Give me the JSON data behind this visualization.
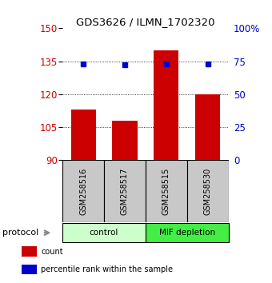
{
  "title": "GDS3626 / ILMN_1702320",
  "samples": [
    "GSM258516",
    "GSM258517",
    "GSM258515",
    "GSM258530"
  ],
  "bar_values": [
    113,
    108,
    140,
    120
  ],
  "percentile_values": [
    73,
    72,
    73,
    73
  ],
  "bar_color": "#cc0000",
  "dot_color": "#0000cc",
  "y_min": 90,
  "y_max": 150,
  "y_ticks_left": [
    90,
    105,
    120,
    135,
    150
  ],
  "y_ticks_right": [
    0,
    25,
    50,
    75,
    100
  ],
  "y_right_labels": [
    "0",
    "25",
    "50",
    "75",
    "100%"
  ],
  "groups": [
    {
      "label": "control",
      "start": 0,
      "end": 2,
      "color": "#ccffcc"
    },
    {
      "label": "MIF depletion",
      "start": 2,
      "end": 4,
      "color": "#44ee44"
    }
  ],
  "protocol_label": "protocol",
  "legend_items": [
    {
      "color": "#cc0000",
      "label": "count"
    },
    {
      "color": "#0000cc",
      "label": "percentile rank within the sample"
    }
  ],
  "bar_width": 0.6,
  "background_color": "#ffffff",
  "gsm_box_color": "#c8c8c8",
  "left_tick_color": "#cc0000",
  "right_tick_color": "#0000cc"
}
